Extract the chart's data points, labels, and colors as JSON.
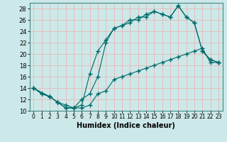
{
  "bg_color": "#cce8e8",
  "grid_color": "#e8b8b8",
  "line_color": "#006868",
  "xlabel": "Humidex (Indice chaleur)",
  "ylim": [
    10,
    29
  ],
  "xlim": [
    -0.5,
    23.5
  ],
  "yticks": [
    10,
    12,
    14,
    16,
    18,
    20,
    22,
    24,
    26,
    28
  ],
  "xticks": [
    0,
    1,
    2,
    3,
    4,
    5,
    6,
    7,
    8,
    9,
    10,
    11,
    12,
    13,
    14,
    15,
    16,
    17,
    18,
    19,
    20,
    21,
    22,
    23
  ],
  "line1_x": [
    0,
    1,
    2,
    3,
    4,
    5,
    6,
    7,
    8,
    9,
    10,
    11,
    12,
    13,
    14,
    15,
    16,
    17,
    18,
    19,
    20,
    21,
    22,
    23
  ],
  "line1_y": [
    14,
    13,
    12.5,
    11.5,
    10.5,
    10.5,
    10.5,
    11,
    13,
    13.5,
    15.5,
    16,
    16.5,
    17,
    17.5,
    18,
    18.5,
    19,
    19.5,
    20,
    20.5,
    21,
    18.5,
    18.5
  ],
  "line2_x": [
    0,
    1,
    2,
    3,
    4,
    5,
    6,
    7,
    8,
    9,
    10,
    11,
    12,
    13,
    14,
    15,
    16,
    17,
    18,
    19,
    20,
    21,
    22,
    23
  ],
  "line2_y": [
    14,
    13,
    12.5,
    11.5,
    11,
    10.5,
    11,
    16.5,
    20.5,
    22.5,
    24.5,
    25,
    25.5,
    26.5,
    26.5,
    27.5,
    27,
    26.5,
    28.5,
    26.5,
    25.5,
    20.5,
    19,
    18.5
  ],
  "line3_x": [
    0,
    2,
    3,
    4,
    5,
    6,
    7,
    8,
    9,
    10,
    11,
    12,
    13,
    14,
    15,
    16,
    17,
    18,
    19,
    20,
    21,
    22,
    23
  ],
  "line3_y": [
    14,
    12.5,
    11.5,
    10.5,
    10.5,
    12,
    13,
    16,
    22,
    24.5,
    25,
    26,
    26,
    27,
    27.5,
    27,
    26.5,
    28.5,
    26.5,
    25.5,
    20.5,
    19,
    18.5
  ]
}
